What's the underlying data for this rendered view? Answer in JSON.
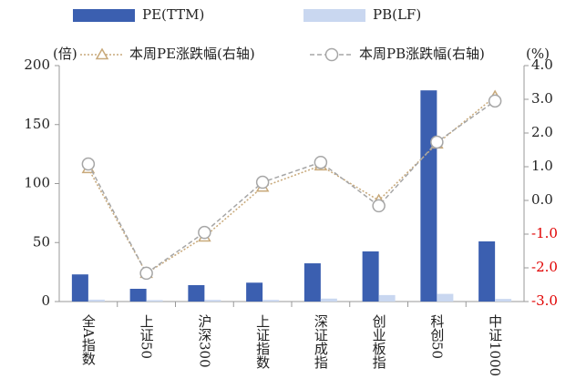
{
  "chart_data": {
    "type": "bar_line",
    "categories": [
      "全A指数",
      "上证50",
      "沪深300",
      "上证指数",
      "深证成指",
      "创业板指",
      "科创50",
      "中证1000"
    ],
    "series": [
      {
        "name": "PE(TTM)",
        "type": "bar",
        "color": "#3b5fb0",
        "values": [
          23,
          10.8,
          13.9,
          16,
          32.4,
          42.5,
          179,
          51
        ]
      },
      {
        "name": "PB(LF)",
        "type": "bar",
        "color": "#c9d7f0",
        "values": [
          1.6,
          1.2,
          1.4,
          1.4,
          2.5,
          5.5,
          6.5,
          2.2
        ]
      },
      {
        "name": "本周PE涨跌幅(右轴)",
        "type": "line",
        "axis": "y2",
        "color": "#c8a97a",
        "marker": "triangle",
        "values": [
          0.95,
          -2.16,
          -1.08,
          0.4,
          1.03,
          0.0,
          1.68,
          3.08
        ]
      },
      {
        "name": "本周PB涨跌幅(右轴)",
        "type": "line",
        "axis": "y2",
        "color": "#a6a6a6",
        "marker": "circle",
        "values": [
          1.08,
          -2.16,
          -0.95,
          0.54,
          1.13,
          -0.16,
          1.73,
          2.95
        ]
      }
    ],
    "y_unit": "(倍)",
    "y2_unit": "(%)",
    "ylim": [
      0,
      200
    ],
    "yticks": [
      0,
      50,
      100,
      150,
      200
    ],
    "y2lim": [
      -3,
      4
    ],
    "y2ticks": [
      {
        "value": -3,
        "label": "-3.0"
      },
      {
        "value": -2,
        "label": "-2.0"
      },
      {
        "value": -1,
        "label": "-1.0"
      },
      {
        "value": 0,
        "label": "0.0"
      },
      {
        "value": 1,
        "label": "1.0"
      },
      {
        "value": 2,
        "label": "2.0"
      },
      {
        "value": 3,
        "label": "3.0"
      },
      {
        "value": 4,
        "label": "4.0"
      }
    ],
    "negative_tick_color": "#e00000"
  }
}
